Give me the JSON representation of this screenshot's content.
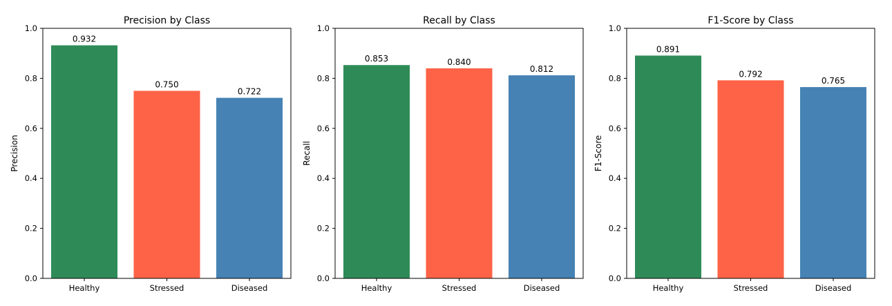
{
  "chart_data": [
    {
      "type": "bar",
      "title": "Precision by Class",
      "xlabel": "",
      "ylabel": "Precision",
      "categories": [
        "Healthy",
        "Stressed",
        "Diseased"
      ],
      "values": [
        0.932,
        0.75,
        0.722
      ],
      "value_labels": [
        "0.932",
        "0.750",
        "0.722"
      ],
      "colors": [
        "#2e8b57",
        "#ff6347",
        "#4682b4"
      ],
      "ylim": [
        0,
        1.0
      ],
      "yticks": [
        "0.0",
        "0.2",
        "0.4",
        "0.6",
        "0.8",
        "1.0"
      ],
      "grid": false,
      "legend": "none"
    },
    {
      "type": "bar",
      "title": "Recall by Class",
      "xlabel": "",
      "ylabel": "Recall",
      "categories": [
        "Healthy",
        "Stressed",
        "Diseased"
      ],
      "values": [
        0.853,
        0.84,
        0.812
      ],
      "value_labels": [
        "0.853",
        "0.840",
        "0.812"
      ],
      "colors": [
        "#2e8b57",
        "#ff6347",
        "#4682b4"
      ],
      "ylim": [
        0,
        1.0
      ],
      "yticks": [
        "0.0",
        "0.2",
        "0.4",
        "0.6",
        "0.8",
        "1.0"
      ],
      "grid": false,
      "legend": "none"
    },
    {
      "type": "bar",
      "title": "F1-Score by Class",
      "xlabel": "",
      "ylabel": "F1-Score",
      "categories": [
        "Healthy",
        "Stressed",
        "Diseased"
      ],
      "values": [
        0.891,
        0.792,
        0.765
      ],
      "value_labels": [
        "0.891",
        "0.792",
        "0.765"
      ],
      "colors": [
        "#2e8b57",
        "#ff6347",
        "#4682b4"
      ],
      "ylim": [
        0,
        1.0
      ],
      "yticks": [
        "0.0",
        "0.2",
        "0.4",
        "0.6",
        "0.8",
        "1.0"
      ],
      "grid": false,
      "legend": "none"
    }
  ]
}
